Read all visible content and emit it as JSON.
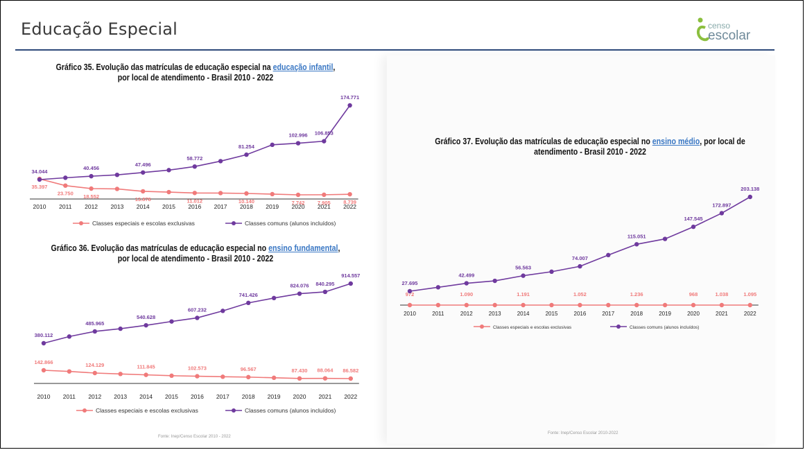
{
  "header": {
    "title": "Educação Especial",
    "logo_small": "censo",
    "logo_big": "escolar"
  },
  "colors": {
    "special": "#f07a7a",
    "common": "#6f3a9e",
    "title_highlight": "#3b78c4",
    "rule": "#2e4a7a"
  },
  "source_left": "Fonte: Inep/Censo Escolar 2010 - 2022",
  "source_right": "Fonte: Inep/Censo Escolar 2010-2022",
  "chart_data": [
    {
      "id": "g35",
      "type": "line",
      "title_pre": "Gráfico 35. Evolução das matrículas de educação especial na ",
      "title_hl": "educação infantil",
      "title_post": ",",
      "title_line2": "por local de atendimento  - Brasil 2010 - 2022",
      "x": [
        "2010",
        "2011",
        "2012",
        "2013",
        "2014",
        "2015",
        "2016",
        "2017",
        "2018",
        "2019",
        "2020",
        "2021",
        "2022"
      ],
      "series": [
        {
          "name": "Classes especiais e escolas exclusivas",
          "color": "#f07a7a",
          "values": [
            35397,
            23750,
            18552,
            18000,
            13878,
            12500,
            11012,
            10800,
            10140,
            9000,
            7742,
            7905,
            8739
          ],
          "labels": [
            "35.397",
            "23.750",
            "18.552",
            "",
            "13.878",
            "",
            "11.012",
            "",
            "10.140",
            "",
            "7.742",
            "7.905",
            "8.739"
          ]
        },
        {
          "name": "Classes comuns (alunos incluídos)",
          "color": "#6f3a9e",
          "values": [
            34044,
            37500,
            40456,
            43000,
            47496,
            52000,
            58772,
            69000,
            81254,
            100000,
            102996,
            106853,
            174771
          ],
          "labels": [
            "34.044",
            "",
            "40.456",
            "",
            "47.496",
            "",
            "58.772",
            "",
            "81.254",
            "",
            "102.996",
            "106.853",
            "174.771"
          ]
        }
      ]
    },
    {
      "id": "g36",
      "type": "line",
      "title_pre": "Gráfico 36. Evolução das matrículas de educação especial no ",
      "title_hl": "ensino fundamental",
      "title_post": ",",
      "title_line2": "por local de atendimento  - Brasil 2010 - 2022",
      "x": [
        "2010",
        "2011",
        "2012",
        "2013",
        "2014",
        "2015",
        "2016",
        "2017",
        "2018",
        "2019",
        "2020",
        "2021",
        "2022"
      ],
      "series": [
        {
          "name": "Classes especiais e escolas exclusivas",
          "color": "#f07a7a",
          "values": [
            142866,
            135000,
            124129,
            118000,
            111845,
            106000,
            102573,
            99000,
            96567,
            92000,
            87430,
            88064,
            86582
          ],
          "labels": [
            "142.866",
            "",
            "124.129",
            "",
            "111.845",
            "",
            "102.573",
            "",
            "96.567",
            "",
            "87.430",
            "88.064",
            "86.582"
          ]
        },
        {
          "name": "Classes comuns (alunos incluídos)",
          "color": "#6f3a9e",
          "values": [
            380112,
            440000,
            485965,
            510000,
            540628,
            575000,
            607232,
            670000,
            741426,
            785000,
            824076,
            840295,
            914557
          ],
          "labels": [
            "380.112",
            "",
            "485.965",
            "",
            "540.628",
            "",
            "607.232",
            "",
            "741.426",
            "",
            "824.076",
            "840.295",
            "914.557"
          ]
        }
      ]
    },
    {
      "id": "g37",
      "type": "line",
      "title_pre": "Gráfico 37. Evolução das matrículas de educação especial no ",
      "title_hl": "ensino médio",
      "title_post": ", por local de",
      "title_line2": "atendimento  - Brasil 2010 - 2022",
      "x": [
        "2010",
        "2011",
        "2012",
        "2013",
        "2014",
        "2015",
        "2016",
        "2017",
        "2018",
        "2019",
        "2020",
        "2021",
        "2022"
      ],
      "series": [
        {
          "name": "Classes especiais e escolas exclusivas",
          "color": "#f07a7a",
          "values": [
            972,
            1030,
            1090,
            1140,
            1191,
            1120,
            1052,
            1140,
            1236,
            1100,
            968,
            1038,
            1095
          ],
          "labels": [
            "972",
            "",
            "1.090",
            "",
            "1.191",
            "",
            "1.052",
            "",
            "1.236",
            "",
            "968",
            "1.038",
            "1.095"
          ]
        },
        {
          "name": "Classes comuns (alunos incluídos)",
          "color": "#6f3a9e",
          "values": [
            27695,
            35000,
            42499,
            47000,
            56563,
            64000,
            74007,
            95000,
            115051,
            125000,
            147545,
            172897,
            203138
          ],
          "labels": [
            "27.695",
            "",
            "42.499",
            "",
            "56.563",
            "",
            "74.007",
            "",
            "115.051",
            "",
            "147.545",
            "172.897",
            "203.138"
          ]
        }
      ]
    }
  ]
}
